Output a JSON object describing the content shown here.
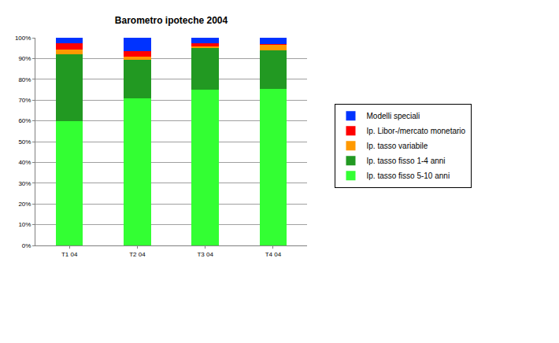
{
  "chart_data": {
    "type": "bar",
    "title": "Barometro ipoteche 2004",
    "categories": [
      "T1 04",
      "T2 04",
      "T3 04",
      "T4 04"
    ],
    "series": [
      {
        "name": "Ip. tasso fisso 5-10 anni",
        "color": "#33ff33",
        "values": [
          60,
          71,
          75,
          75.5
        ]
      },
      {
        "name": "Ip. tasso fisso 1-4 anni",
        "color": "#229922",
        "values": [
          32,
          18.5,
          20,
          18.5
        ]
      },
      {
        "name": "Ip. tasso variabile",
        "color": "#ff9900",
        "values": [
          2.5,
          1.5,
          1,
          2.5
        ]
      },
      {
        "name": "Ip. Libor-/mercato monetario",
        "color": "#ff0000",
        "values": [
          3,
          2.5,
          1.5,
          0.5
        ]
      },
      {
        "name": "Modelli speciali",
        "color": "#0033ff",
        "values": [
          2.5,
          6.5,
          2.5,
          3
        ]
      }
    ],
    "ylim": [
      0,
      100
    ],
    "yticks": [
      {
        "value": 0,
        "label": "0%"
      },
      {
        "value": 10,
        "label": "10%"
      },
      {
        "value": 20,
        "label": "20%"
      },
      {
        "value": 30,
        "label": "30%"
      },
      {
        "value": 40,
        "label": "40%"
      },
      {
        "value": 50,
        "label": "50%"
      },
      {
        "value": 60,
        "label": "60%"
      },
      {
        "value": 70,
        "label": "70%"
      },
      {
        "value": 80,
        "label": "80%"
      },
      {
        "value": 90,
        "label": "90%"
      },
      {
        "value": 100,
        "label": "100%"
      }
    ],
    "grid": true,
    "stacked": true,
    "legend": "right"
  }
}
